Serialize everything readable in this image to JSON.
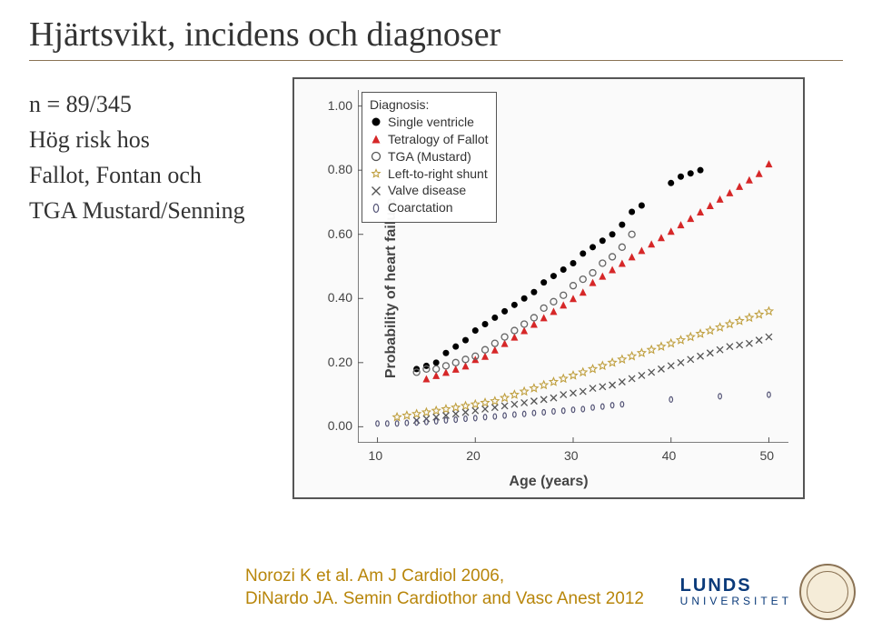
{
  "title": "Hjärtsvikt, incidens och diagnoser",
  "left_text": {
    "line1": "n = 89/345",
    "line2": "Hög risk hos",
    "line3": "Fallot, Fontan och",
    "line4": "TGA Mustard/Senning"
  },
  "chart": {
    "type": "scatter",
    "y_label": "Probability of heart failure",
    "x_label": "Age (years)",
    "xlim": [
      8,
      52
    ],
    "ylim": [
      -0.05,
      1.05
    ],
    "x_ticks": [
      10,
      20,
      30,
      40,
      50
    ],
    "y_ticks": [
      0.0,
      0.2,
      0.4,
      0.6,
      0.8,
      1.0
    ],
    "y_tick_labels": [
      "0.00",
      "0.20",
      "0.40",
      "0.60",
      "0.80",
      "1.00"
    ],
    "background_color": "#fafafa",
    "axis_color": "#555555",
    "label_fontsize": 16,
    "tick_fontsize": 14,
    "legend": {
      "title": "Diagnosis:",
      "items": [
        {
          "label": "Single ventricle",
          "marker": "filled-circle",
          "color": "#000000"
        },
        {
          "label": "Tetralogy of Fallot",
          "marker": "filled-triangle",
          "color": "#d62728"
        },
        {
          "label": "TGA (Mustard)",
          "marker": "open-circle",
          "color": "#555555"
        },
        {
          "label": "Left-to-right shunt",
          "marker": "open-star",
          "color": "#c0a040"
        },
        {
          "label": "Valve disease",
          "marker": "x",
          "color": "#555555"
        },
        {
          "label": "Coarctation",
          "marker": "open-ellipse",
          "color": "#555577"
        }
      ]
    },
    "series": [
      {
        "name": "Single ventricle",
        "marker": "filled-circle",
        "color": "#000000",
        "size": 7,
        "points": [
          [
            14,
            0.18
          ],
          [
            15,
            0.19
          ],
          [
            16,
            0.2
          ],
          [
            17,
            0.23
          ],
          [
            18,
            0.25
          ],
          [
            19,
            0.27
          ],
          [
            20,
            0.3
          ],
          [
            21,
            0.32
          ],
          [
            22,
            0.34
          ],
          [
            23,
            0.36
          ],
          [
            24,
            0.38
          ],
          [
            25,
            0.4
          ],
          [
            26,
            0.42
          ],
          [
            27,
            0.45
          ],
          [
            28,
            0.47
          ],
          [
            29,
            0.49
          ],
          [
            30,
            0.51
          ],
          [
            31,
            0.54
          ],
          [
            32,
            0.56
          ],
          [
            33,
            0.58
          ],
          [
            34,
            0.6
          ],
          [
            35,
            0.63
          ],
          [
            36,
            0.67
          ],
          [
            37,
            0.69
          ],
          [
            40,
            0.76
          ],
          [
            41,
            0.78
          ],
          [
            42,
            0.79
          ],
          [
            43,
            0.8
          ]
        ]
      },
      {
        "name": "Tetralogy of Fallot",
        "marker": "filled-triangle",
        "color": "#d62728",
        "size": 8,
        "points": [
          [
            15,
            0.15
          ],
          [
            16,
            0.16
          ],
          [
            17,
            0.17
          ],
          [
            18,
            0.18
          ],
          [
            19,
            0.19
          ],
          [
            20,
            0.21
          ],
          [
            21,
            0.22
          ],
          [
            22,
            0.24
          ],
          [
            23,
            0.26
          ],
          [
            24,
            0.28
          ],
          [
            25,
            0.3
          ],
          [
            26,
            0.32
          ],
          [
            27,
            0.34
          ],
          [
            28,
            0.36
          ],
          [
            29,
            0.38
          ],
          [
            30,
            0.4
          ],
          [
            31,
            0.42
          ],
          [
            32,
            0.45
          ],
          [
            33,
            0.47
          ],
          [
            34,
            0.49
          ],
          [
            35,
            0.51
          ],
          [
            36,
            0.53
          ],
          [
            37,
            0.55
          ],
          [
            38,
            0.57
          ],
          [
            39,
            0.59
          ],
          [
            40,
            0.61
          ],
          [
            41,
            0.63
          ],
          [
            42,
            0.65
          ],
          [
            43,
            0.67
          ],
          [
            44,
            0.69
          ],
          [
            45,
            0.71
          ],
          [
            46,
            0.73
          ],
          [
            47,
            0.75
          ],
          [
            48,
            0.77
          ],
          [
            49,
            0.79
          ],
          [
            50,
            0.82
          ]
        ]
      },
      {
        "name": "TGA (Mustard)",
        "marker": "open-circle",
        "color": "#666666",
        "size": 7,
        "points": [
          [
            14,
            0.17
          ],
          [
            15,
            0.18
          ],
          [
            16,
            0.18
          ],
          [
            17,
            0.19
          ],
          [
            18,
            0.2
          ],
          [
            19,
            0.21
          ],
          [
            20,
            0.22
          ],
          [
            21,
            0.24
          ],
          [
            22,
            0.26
          ],
          [
            23,
            0.28
          ],
          [
            24,
            0.3
          ],
          [
            25,
            0.32
          ],
          [
            26,
            0.34
          ],
          [
            27,
            0.37
          ],
          [
            28,
            0.39
          ],
          [
            29,
            0.41
          ],
          [
            30,
            0.44
          ],
          [
            31,
            0.46
          ],
          [
            32,
            0.48
          ],
          [
            33,
            0.51
          ],
          [
            34,
            0.53
          ],
          [
            35,
            0.56
          ],
          [
            36,
            0.6
          ]
        ]
      },
      {
        "name": "Left-to-right shunt",
        "marker": "open-star",
        "color": "#c0a040",
        "size": 9,
        "points": [
          [
            12,
            0.03
          ],
          [
            13,
            0.035
          ],
          [
            14,
            0.04
          ],
          [
            15,
            0.045
          ],
          [
            16,
            0.05
          ],
          [
            17,
            0.055
          ],
          [
            18,
            0.06
          ],
          [
            19,
            0.065
          ],
          [
            20,
            0.07
          ],
          [
            21,
            0.075
          ],
          [
            22,
            0.08
          ],
          [
            23,
            0.09
          ],
          [
            24,
            0.1
          ],
          [
            25,
            0.11
          ],
          [
            26,
            0.12
          ],
          [
            27,
            0.13
          ],
          [
            28,
            0.14
          ],
          [
            29,
            0.15
          ],
          [
            30,
            0.16
          ],
          [
            31,
            0.17
          ],
          [
            32,
            0.18
          ],
          [
            33,
            0.19
          ],
          [
            34,
            0.2
          ],
          [
            35,
            0.21
          ],
          [
            36,
            0.22
          ],
          [
            37,
            0.23
          ],
          [
            38,
            0.24
          ],
          [
            39,
            0.25
          ],
          [
            40,
            0.26
          ],
          [
            41,
            0.27
          ],
          [
            42,
            0.28
          ],
          [
            43,
            0.29
          ],
          [
            44,
            0.3
          ],
          [
            45,
            0.31
          ],
          [
            46,
            0.32
          ],
          [
            47,
            0.33
          ],
          [
            48,
            0.34
          ],
          [
            49,
            0.35
          ],
          [
            50,
            0.36
          ]
        ]
      },
      {
        "name": "Valve disease",
        "marker": "x",
        "color": "#555555",
        "size": 7,
        "points": [
          [
            14,
            0.02
          ],
          [
            15,
            0.025
          ],
          [
            16,
            0.03
          ],
          [
            17,
            0.035
          ],
          [
            18,
            0.04
          ],
          [
            19,
            0.045
          ],
          [
            20,
            0.05
          ],
          [
            21,
            0.055
          ],
          [
            22,
            0.06
          ],
          [
            23,
            0.065
          ],
          [
            24,
            0.07
          ],
          [
            25,
            0.075
          ],
          [
            26,
            0.08
          ],
          [
            27,
            0.085
          ],
          [
            28,
            0.09
          ],
          [
            29,
            0.1
          ],
          [
            30,
            0.105
          ],
          [
            31,
            0.11
          ],
          [
            32,
            0.12
          ],
          [
            33,
            0.125
          ],
          [
            34,
            0.13
          ],
          [
            35,
            0.14
          ],
          [
            36,
            0.15
          ],
          [
            37,
            0.16
          ],
          [
            38,
            0.17
          ],
          [
            39,
            0.18
          ],
          [
            40,
            0.19
          ],
          [
            41,
            0.2
          ],
          [
            42,
            0.21
          ],
          [
            43,
            0.22
          ],
          [
            44,
            0.23
          ],
          [
            45,
            0.24
          ],
          [
            46,
            0.25
          ],
          [
            47,
            0.255
          ],
          [
            48,
            0.26
          ],
          [
            49,
            0.27
          ],
          [
            50,
            0.28
          ]
        ]
      },
      {
        "name": "Coarctation",
        "marker": "open-ellipse",
        "color": "#555577",
        "size": 6,
        "points": [
          [
            10,
            0.01
          ],
          [
            11,
            0.01
          ],
          [
            12,
            0.01
          ],
          [
            13,
            0.012
          ],
          [
            14,
            0.013
          ],
          [
            15,
            0.015
          ],
          [
            16,
            0.017
          ],
          [
            17,
            0.02
          ],
          [
            18,
            0.022
          ],
          [
            19,
            0.025
          ],
          [
            20,
            0.027
          ],
          [
            21,
            0.03
          ],
          [
            22,
            0.032
          ],
          [
            23,
            0.035
          ],
          [
            24,
            0.038
          ],
          [
            25,
            0.04
          ],
          [
            26,
            0.043
          ],
          [
            27,
            0.045
          ],
          [
            28,
            0.048
          ],
          [
            29,
            0.05
          ],
          [
            30,
            0.053
          ],
          [
            31,
            0.055
          ],
          [
            32,
            0.06
          ],
          [
            33,
            0.063
          ],
          [
            34,
            0.067
          ],
          [
            35,
            0.07
          ],
          [
            40,
            0.085
          ],
          [
            45,
            0.095
          ],
          [
            50,
            0.1
          ]
        ]
      }
    ]
  },
  "citation": {
    "line1": "Norozi K et al. Am J Cardiol 2006,",
    "line2": "DiNardo JA. Semin Cardiothor and Vasc Anest 2012"
  },
  "logo": {
    "top": "LUNDS",
    "bottom": "UNIVERSITET"
  }
}
